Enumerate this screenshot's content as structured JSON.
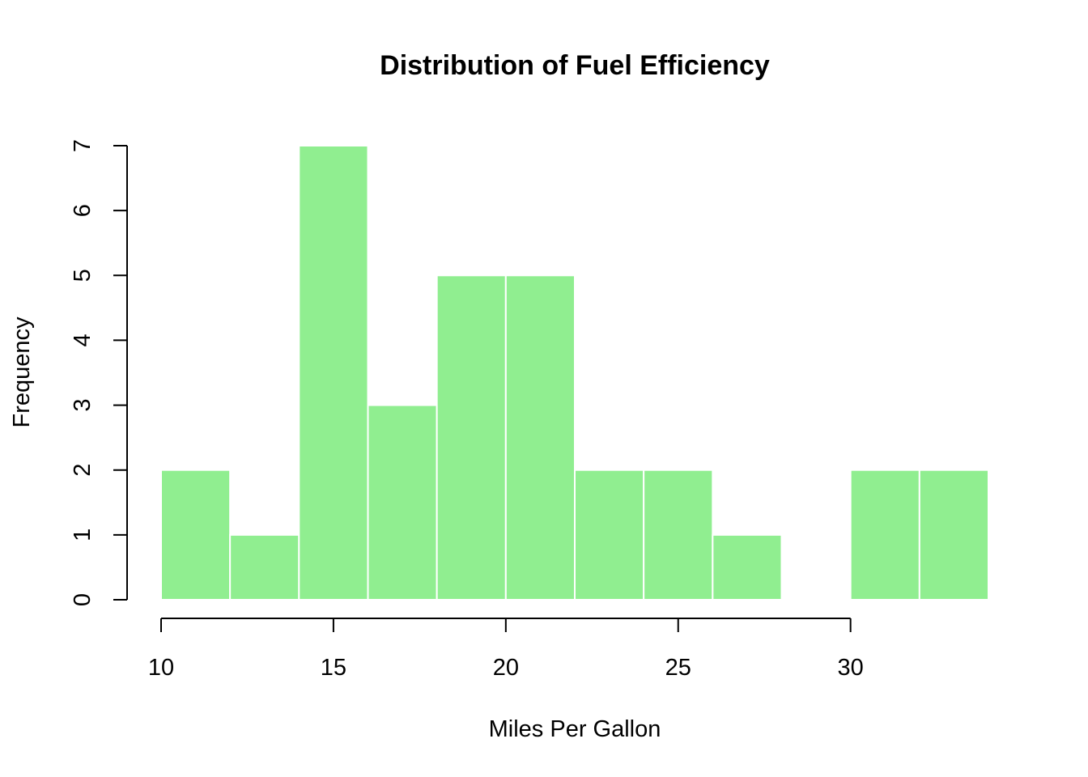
{
  "chart_data": {
    "type": "bar",
    "title": "Distribution of Fuel Efficiency",
    "xlabel": "Miles Per Gallon",
    "ylabel": "Frequency",
    "bin_edges": [
      10,
      12,
      14,
      16,
      18,
      20,
      22,
      24,
      26,
      28,
      30,
      32,
      34
    ],
    "values": [
      2,
      1,
      7,
      3,
      5,
      5,
      2,
      2,
      1,
      0,
      2,
      2
    ],
    "xticks": [
      10,
      15,
      20,
      25,
      30
    ],
    "yticks": [
      0,
      1,
      2,
      3,
      4,
      5,
      6,
      7
    ],
    "xlim": [
      10,
      34
    ],
    "ylim": [
      0,
      7
    ],
    "grid": false,
    "bar_color": "#90EE90",
    "border_color": "#ffffff"
  }
}
